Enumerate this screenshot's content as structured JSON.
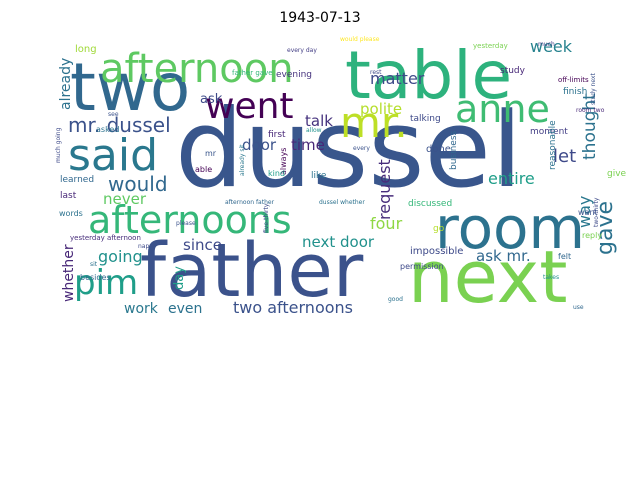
{
  "title": "1943-07-13",
  "words": [
    {
      "text": "dusseI",
      "color": "#39568c"
    },
    {
      "text": "table",
      "color": "#2db27d"
    },
    {
      "text": "father",
      "color": "#3b528b"
    },
    {
      "text": "next",
      "color": "#7ad151"
    },
    {
      "text": "two",
      "color": "#31688e"
    },
    {
      "text": "room",
      "color": "#2c728e"
    },
    {
      "text": "afternoon",
      "color": "#5ec962"
    },
    {
      "text": "afternoons",
      "color": "#35b779"
    },
    {
      "text": "said",
      "color": "#2a788e"
    },
    {
      "text": "went",
      "color": "#440154"
    },
    {
      "text": "anne",
      "color": "#3fbc73"
    },
    {
      "text": "mr.",
      "color": "#bddf26"
    },
    {
      "text": "pim",
      "color": "#1f9e89"
    },
    {
      "text": "mr. dussel",
      "color": "#3b528b"
    },
    {
      "text": "would",
      "color": "#31688e"
    },
    {
      "text": "gave",
      "color": "#2c728e"
    },
    {
      "text": "matter",
      "color": "#3e4a89"
    },
    {
      "text": "week",
      "color": "#26828e"
    },
    {
      "text": "talk",
      "color": "#46337e"
    },
    {
      "text": "polite",
      "color": "#b5de2b"
    },
    {
      "text": "thought",
      "color": "#2c728e"
    },
    {
      "text": "door",
      "color": "#3b528b"
    },
    {
      "text": "time",
      "color": "#482878"
    },
    {
      "text": "request",
      "color": "#472d7b"
    },
    {
      "text": "let",
      "color": "#3e4989"
    },
    {
      "text": "entire",
      "color": "#1f9e89"
    },
    {
      "text": "way",
      "color": "#2a788e"
    },
    {
      "text": "ask",
      "color": "#3e4a89"
    },
    {
      "text": "already",
      "color": "#2c728e"
    },
    {
      "text": "never",
      "color": "#5ec962"
    },
    {
      "text": "going",
      "color": "#21918c"
    },
    {
      "text": "since",
      "color": "#3e4a89"
    },
    {
      "text": "four",
      "color": "#8fd744"
    },
    {
      "text": "next door",
      "color": "#21918c"
    },
    {
      "text": "ask mr.",
      "color": "#31688e"
    },
    {
      "text": "day",
      "color": "#1f9e89"
    },
    {
      "text": "work",
      "color": "#2a788e"
    },
    {
      "text": "even",
      "color": "#2c728e"
    },
    {
      "text": "two afternoons",
      "color": "#3b528b"
    },
    {
      "text": "whether",
      "color": "#482878"
    },
    {
      "text": "impossible",
      "color": "#3e4a89"
    },
    {
      "text": "long",
      "color": "#a0da39"
    },
    {
      "text": "evening",
      "color": "#46337e"
    },
    {
      "text": "every day",
      "color": "#433e85"
    },
    {
      "text": "yesterday",
      "color": "#7ad151"
    },
    {
      "text": "much",
      "color": "#433e85"
    },
    {
      "text": "would please",
      "color": "#fde725"
    },
    {
      "text": "study",
      "color": "#482878"
    },
    {
      "text": "finish",
      "color": "#2c728e"
    },
    {
      "text": "off-limits",
      "color": "#440154"
    },
    {
      "text": "moment",
      "color": "#433e85"
    },
    {
      "text": "reasonable",
      "color": "#2c728e"
    },
    {
      "text": "rest",
      "color": "#3e4a89"
    },
    {
      "text": "see",
      "color": "#3b528b"
    },
    {
      "text": "father gave",
      "color": "#35b779"
    },
    {
      "text": "asked",
      "color": "#2c728e"
    },
    {
      "text": "first",
      "color": "#482878"
    },
    {
      "text": "allow",
      "color": "#21918c"
    },
    {
      "text": "talking",
      "color": "#3e4a89"
    },
    {
      "text": "done",
      "color": "#3b528b"
    },
    {
      "text": "business",
      "color": "#31688e"
    },
    {
      "text": "give",
      "color": "#7ad151"
    },
    {
      "text": "much going",
      "color": "#3e4a89"
    },
    {
      "text": "mr",
      "color": "#39568c"
    },
    {
      "text": "always",
      "color": "#440154"
    },
    {
      "text": "every",
      "color": "#3b528b"
    },
    {
      "text": "already sit",
      "color": "#2a788e"
    },
    {
      "text": "able",
      "color": "#440154"
    },
    {
      "text": "like",
      "color": "#2c728e"
    },
    {
      "text": "learned",
      "color": "#31688e"
    },
    {
      "text": "last",
      "color": "#482878"
    },
    {
      "text": "words",
      "color": "#2c728e"
    },
    {
      "text": "yesterday afternoon",
      "color": "#472d7b"
    },
    {
      "text": "discussed",
      "color": "#35b779"
    },
    {
      "text": "go",
      "color": "#b5de2b"
    },
    {
      "text": "afternoon father",
      "color": "#31688e"
    },
    {
      "text": "dussel whether",
      "color": "#2c728e"
    },
    {
      "text": "two-thirty",
      "color": "#3e4a89"
    },
    {
      "text": "reply",
      "color": "#7ad151"
    },
    {
      "text": "want",
      "color": "#3b528b"
    },
    {
      "text": "nap",
      "color": "#3e4a89"
    },
    {
      "text": "sit",
      "color": "#2c728e"
    },
    {
      "text": "besides",
      "color": "#31688e"
    },
    {
      "text": "permission",
      "color": "#3e4a89"
    },
    {
      "text": "felt",
      "color": "#31688e"
    },
    {
      "text": "kind",
      "color": "#1f9e89"
    },
    {
      "text": "please",
      "color": "#3b528b"
    },
    {
      "text": "five-thirty",
      "color": "#3e4a89"
    },
    {
      "text": "takes",
      "color": "#21918c"
    },
    {
      "text": "good",
      "color": "#2c728e"
    },
    {
      "text": "use",
      "color": "#31688e"
    },
    {
      "text": "room two",
      "color": "#482878"
    },
    {
      "text": "study next",
      "color": "#3b528b"
    }
  ]
}
